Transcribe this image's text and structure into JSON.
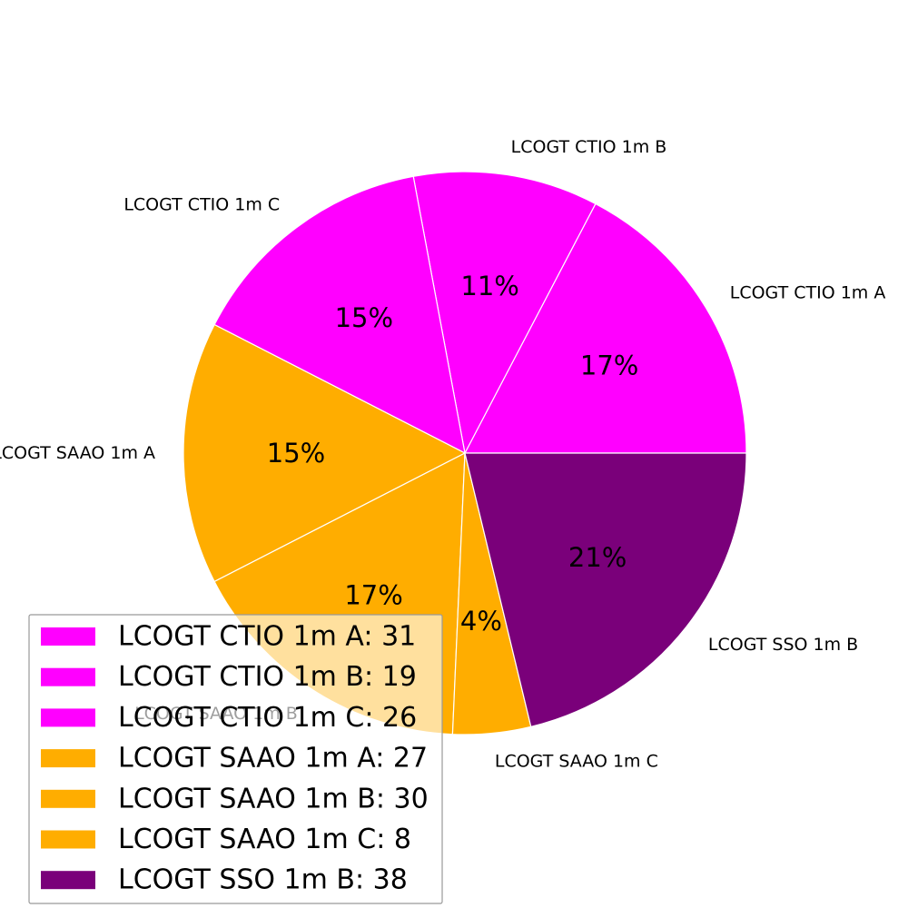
{
  "chart_data": {
    "type": "pie",
    "title": "",
    "slices": [
      {
        "label": "LCOGT CTIO 1m A",
        "value": 31,
        "percent_label": "17%",
        "legend_label": "LCOGT CTIO 1m A: 31",
        "color": "#ff00ff"
      },
      {
        "label": "LCOGT CTIO 1m B",
        "value": 19,
        "percent_label": "11%",
        "legend_label": "LCOGT CTIO 1m B: 19",
        "color": "#ff00ff"
      },
      {
        "label": "LCOGT CTIO 1m C",
        "value": 26,
        "percent_label": "15%",
        "legend_label": "LCOGT CTIO 1m C: 26",
        "color": "#ff00ff"
      },
      {
        "label": "LCOGT SAAO 1m A",
        "value": 27,
        "percent_label": "15%",
        "legend_label": "LCOGT SAAO 1m A: 27",
        "color": "#ffad00"
      },
      {
        "label": "LCOGT SAAO 1m B",
        "value": 30,
        "percent_label": "17%",
        "legend_label": "LCOGT SAAO 1m B: 30",
        "color": "#ffad00"
      },
      {
        "label": "LCOGT SAAO 1m C",
        "value": 8,
        "percent_label": "4%",
        "legend_label": "LCOGT SAAO 1m C: 8",
        "color": "#ffad00"
      },
      {
        "label": "LCOGT SSO 1m B",
        "value": 38,
        "percent_label": "21%",
        "legend_label": "LCOGT SSO 1m B: 38",
        "color": "#7a007a"
      }
    ],
    "legend_position": "lower-left",
    "start_angle_deg": 0,
    "direction": "counterclockwise"
  }
}
